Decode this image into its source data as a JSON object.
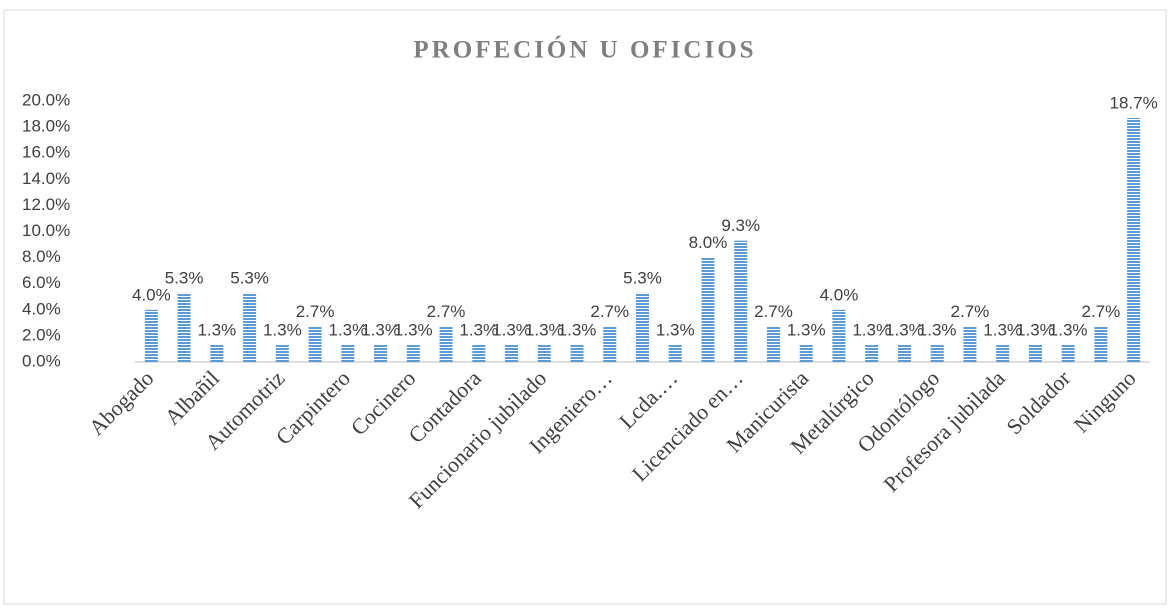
{
  "chart_data": {
    "type": "bar",
    "title": "PROFECIÓN U OFICIOS",
    "categories": [
      "Abogado",
      null,
      "Albañil",
      null,
      "Automotriz",
      null,
      "Carpintero",
      null,
      "Cocinero",
      null,
      "Contadora",
      null,
      "Funcionario jubilado",
      null,
      "Ingeniero…",
      null,
      "Lcda.…",
      null,
      "Licenciado en…",
      null,
      "Manicurista",
      null,
      "Metalúrgico",
      null,
      "Odontólogo",
      null,
      "Profesora jubilada",
      null,
      "Soldador",
      null,
      "Ninguno"
    ],
    "values": [
      4.0,
      5.3,
      1.3,
      5.3,
      1.3,
      2.7,
      1.3,
      1.3,
      1.3,
      2.7,
      1.3,
      1.3,
      1.3,
      1.3,
      2.7,
      5.3,
      1.3,
      8.0,
      9.3,
      2.7,
      1.3,
      4.0,
      1.3,
      1.3,
      1.3,
      2.7,
      1.3,
      1.3,
      1.3,
      2.7,
      18.7
    ],
    "value_labels": [
      "4.0%",
      "5.3%",
      "1.3%",
      "5.3%",
      "1.3%",
      "2.7%",
      "1.3%",
      "1.3%",
      "1.3%",
      "2.7%",
      "1.3%",
      "1.3%",
      "1.3%",
      "1.3%",
      "2.7%",
      "5.3%",
      "1.3%",
      "8.0%",
      "9.3%",
      "2.7%",
      "1.3%",
      "4.0%",
      "1.3%",
      "1.3%",
      "1.3%",
      "2.7%",
      "1.3%",
      "1.3%",
      "1.3%",
      "2.7%",
      "18.7%"
    ],
    "color": "#5b9bd5",
    "ylim": [
      0,
      20
    ],
    "yticks": [
      {
        "value": 0,
        "label": "0.0%"
      },
      {
        "value": 2,
        "label": "2.0%"
      },
      {
        "value": 4,
        "label": "4.0%"
      },
      {
        "value": 6,
        "label": "6.0%"
      },
      {
        "value": 8,
        "label": "8.0%"
      },
      {
        "value": 10,
        "label": "10.0%"
      },
      {
        "value": 12,
        "label": "12.0%"
      },
      {
        "value": 14,
        "label": "14.0%"
      },
      {
        "value": 16,
        "label": "16.0%"
      },
      {
        "value": 18,
        "label": "18.0%"
      },
      {
        "value": 20,
        "label": "20.0%"
      }
    ],
    "grid": false
  }
}
